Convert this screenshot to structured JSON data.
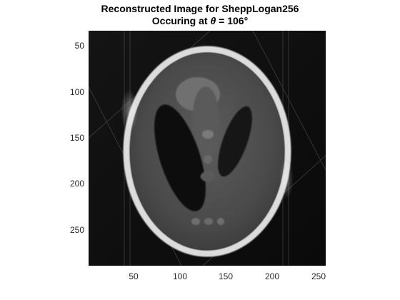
{
  "title": {
    "line1": "Reconstructed Image for SheppLogan256",
    "line2_prefix": "Occuring at ",
    "line2_symbol": "θ",
    "line2_suffix": " = 106°"
  },
  "axes": {
    "x_ticks": [
      "50",
      "100",
      "150",
      "200",
      "250"
    ],
    "y_ticks": [
      "50",
      "100",
      "150",
      "200",
      "250"
    ],
    "xlim": [
      0.5,
      256.5
    ],
    "ylim": [
      0.5,
      256.5
    ],
    "y_direction": "reversed"
  },
  "image": {
    "name": "SheppLogan256",
    "theta_deg": 106,
    "colormap": "gray"
  }
}
